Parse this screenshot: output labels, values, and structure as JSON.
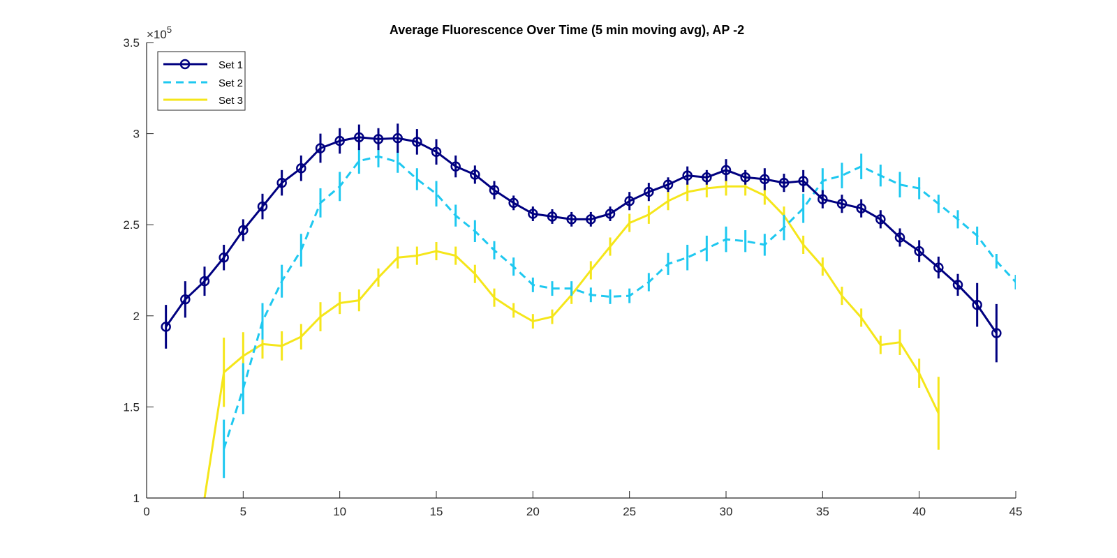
{
  "chart_data": {
    "type": "line",
    "title": "Average Fluorescence Over Time (5 min moving avg), AP -2",
    "xlabel": "",
    "ylabel": "",
    "xlim": [
      0,
      45
    ],
    "ylim": [
      1,
      3.5
    ],
    "y_multiplier": "×10",
    "y_multiplier_exp": "5",
    "x_ticks": [
      "0",
      "5",
      "10",
      "15",
      "20",
      "25",
      "30",
      "35",
      "40",
      "45"
    ],
    "y_ticks": [
      "1",
      "1.5",
      "2",
      "2.5",
      "3",
      "3.5"
    ],
    "grid": false,
    "legend_position": "top-left",
    "series": [
      {
        "name": "Set 1",
        "color": "#000080",
        "style": "solid-circle",
        "x": [
          1,
          2,
          3,
          4,
          5,
          6,
          7,
          8,
          9,
          10,
          11,
          12,
          13,
          14,
          15,
          16,
          17,
          18,
          19,
          20,
          21,
          22,
          23,
          24,
          25,
          26,
          27,
          28,
          29,
          30,
          31,
          32,
          33,
          34,
          35,
          36,
          37,
          38,
          39,
          40,
          41,
          42,
          43,
          44
        ],
        "y": [
          1.94,
          2.09,
          2.19,
          2.32,
          2.47,
          2.6,
          2.73,
          2.81,
          2.92,
          2.96,
          2.98,
          2.97,
          2.975,
          2.955,
          2.9,
          2.82,
          2.775,
          2.69,
          2.62,
          2.56,
          2.545,
          2.53,
          2.53,
          2.56,
          2.63,
          2.68,
          2.72,
          2.77,
          2.76,
          2.8,
          2.76,
          2.75,
          2.73,
          2.74,
          2.64,
          2.615,
          2.59,
          2.53,
          2.43,
          2.355,
          2.265,
          2.17,
          2.06,
          1.905
        ],
        "err": [
          0.12,
          0.1,
          0.08,
          0.07,
          0.06,
          0.07,
          0.07,
          0.07,
          0.08,
          0.07,
          0.07,
          0.06,
          0.08,
          0.07,
          0.07,
          0.06,
          0.05,
          0.05,
          0.04,
          0.04,
          0.04,
          0.04,
          0.04,
          0.04,
          0.05,
          0.05,
          0.04,
          0.05,
          0.04,
          0.06,
          0.04,
          0.06,
          0.05,
          0.06,
          0.05,
          0.05,
          0.05,
          0.05,
          0.05,
          0.06,
          0.06,
          0.06,
          0.12,
          0.16
        ]
      },
      {
        "name": "Set 2",
        "color": "#1ec8f0",
        "style": "dashed",
        "x": [
          4,
          5,
          6,
          7,
          8,
          9,
          10,
          11,
          12,
          13,
          14,
          15,
          16,
          17,
          18,
          19,
          20,
          21,
          22,
          23,
          24,
          25,
          26,
          27,
          28,
          29,
          30,
          31,
          32,
          33,
          34,
          35,
          36,
          37,
          38,
          39,
          40,
          41,
          42,
          43,
          44,
          45
        ],
        "y": [
          1.27,
          1.6,
          1.97,
          2.19,
          2.36,
          2.62,
          2.71,
          2.85,
          2.875,
          2.845,
          2.75,
          2.67,
          2.55,
          2.465,
          2.36,
          2.27,
          2.17,
          2.15,
          2.15,
          2.115,
          2.105,
          2.11,
          2.185,
          2.285,
          2.32,
          2.37,
          2.42,
          2.41,
          2.39,
          2.485,
          2.59,
          2.74,
          2.77,
          2.82,
          2.77,
          2.72,
          2.7,
          2.615,
          2.53,
          2.44,
          2.3,
          2.185
        ],
        "err": [
          0.16,
          0.14,
          0.1,
          0.09,
          0.09,
          0.08,
          0.08,
          0.07,
          0.06,
          0.06,
          0.06,
          0.07,
          0.06,
          0.06,
          0.05,
          0.05,
          0.04,
          0.04,
          0.04,
          0.04,
          0.04,
          0.04,
          0.05,
          0.06,
          0.07,
          0.07,
          0.07,
          0.06,
          0.06,
          0.07,
          0.08,
          0.07,
          0.07,
          0.07,
          0.06,
          0.07,
          0.06,
          0.05,
          0.05,
          0.05,
          0.04,
          0.04
        ]
      },
      {
        "name": "Set 3",
        "color": "#f5e61a",
        "style": "solid",
        "x": [
          3,
          4,
          5,
          6,
          7,
          8,
          9,
          10,
          11,
          12,
          13,
          14,
          15,
          16,
          17,
          18,
          19,
          20,
          21,
          22,
          23,
          24,
          25,
          26,
          27,
          28,
          29,
          30,
          31,
          32,
          33,
          34,
          35,
          36,
          37,
          38,
          39,
          40,
          41
        ],
        "y": [
          1.0,
          1.69,
          1.78,
          1.845,
          1.835,
          1.885,
          1.995,
          2.07,
          2.085,
          2.21,
          2.32,
          2.33,
          2.355,
          2.33,
          2.23,
          2.1,
          2.03,
          1.97,
          1.995,
          2.115,
          2.25,
          2.38,
          2.51,
          2.555,
          2.63,
          2.68,
          2.7,
          2.71,
          2.71,
          2.66,
          2.55,
          2.39,
          2.27,
          2.11,
          1.99,
          1.84,
          1.855,
          1.685,
          1.465
        ],
        "err": [
          0.0,
          0.19,
          0.13,
          0.08,
          0.08,
          0.07,
          0.08,
          0.06,
          0.06,
          0.05,
          0.06,
          0.05,
          0.05,
          0.05,
          0.05,
          0.05,
          0.04,
          0.04,
          0.04,
          0.05,
          0.05,
          0.05,
          0.05,
          0.05,
          0.05,
          0.05,
          0.05,
          0.05,
          0.05,
          0.05,
          0.05,
          0.05,
          0.05,
          0.05,
          0.05,
          0.05,
          0.07,
          0.08,
          0.2
        ]
      }
    ]
  }
}
